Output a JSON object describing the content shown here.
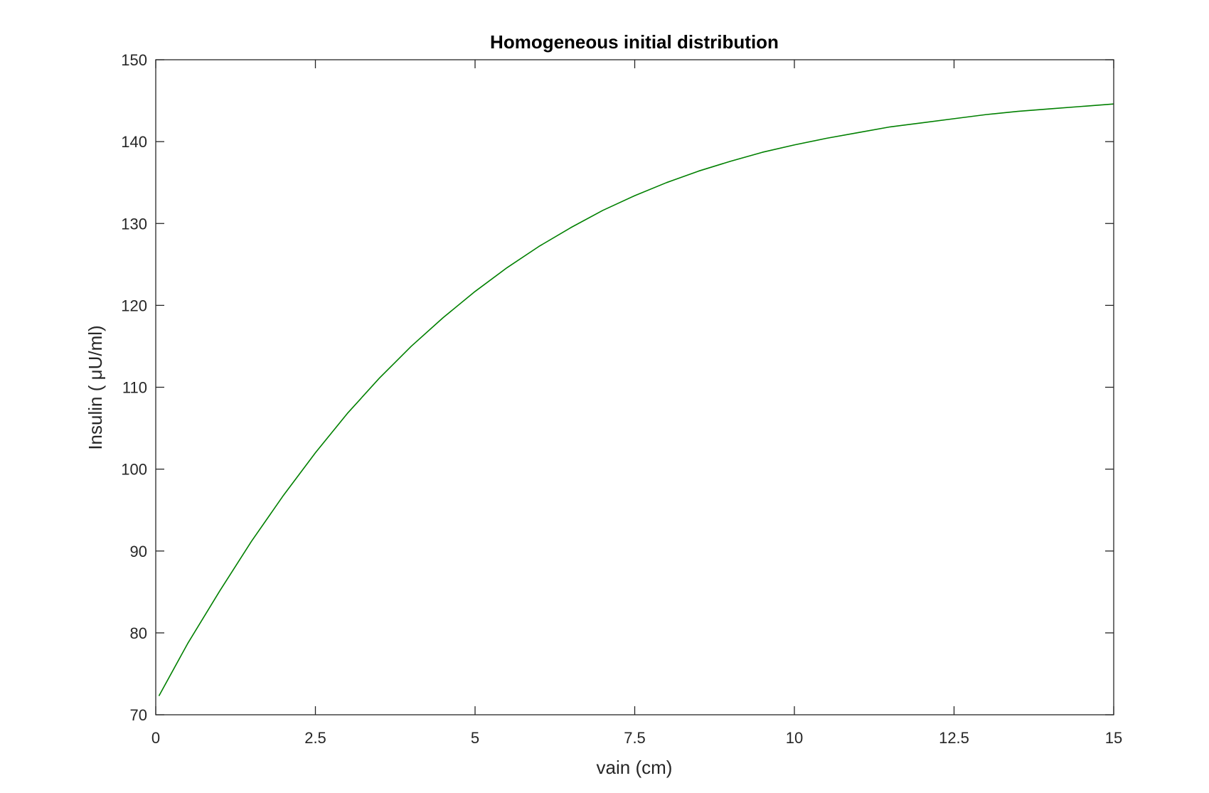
{
  "chart_data": {
    "type": "line",
    "title": "Homogeneous initial distribution",
    "xlabel": "vain (cm)",
    "ylabel": "Insulin ( μU/ml)",
    "xlim": [
      0,
      15
    ],
    "ylim": [
      70,
      150
    ],
    "xticks": [
      0,
      2.5,
      5,
      7.5,
      10,
      12.5,
      15
    ],
    "xtick_labels": [
      "0",
      "2.5",
      "5",
      "7.5",
      "10",
      "12.5",
      "15"
    ],
    "yticks": [
      70,
      80,
      90,
      100,
      110,
      120,
      130,
      140,
      150
    ],
    "ytick_labels": [
      "70",
      "80",
      "90",
      "100",
      "110",
      "120",
      "130",
      "140",
      "150"
    ],
    "grid": false,
    "box": true,
    "series": [
      {
        "color": "#008000",
        "x": [
          0.05,
          0.5,
          1,
          1.5,
          2,
          2.5,
          3,
          3.5,
          4,
          4.5,
          5,
          5.5,
          6,
          6.5,
          7,
          7.5,
          8,
          8.5,
          9,
          9.5,
          10,
          10.5,
          11,
          11.5,
          12,
          12.5,
          13,
          13.5,
          14,
          14.5,
          15
        ],
        "y": [
          72.3,
          78.7,
          85.1,
          91.2,
          96.8,
          102.0,
          106.8,
          111.1,
          115.0,
          118.5,
          121.7,
          124.6,
          127.2,
          129.5,
          131.6,
          133.4,
          135.0,
          136.4,
          137.6,
          138.7,
          139.6,
          140.4,
          141.1,
          141.8,
          142.3,
          142.8,
          143.3,
          143.7,
          144.0,
          144.3,
          144.6
        ]
      }
    ]
  }
}
